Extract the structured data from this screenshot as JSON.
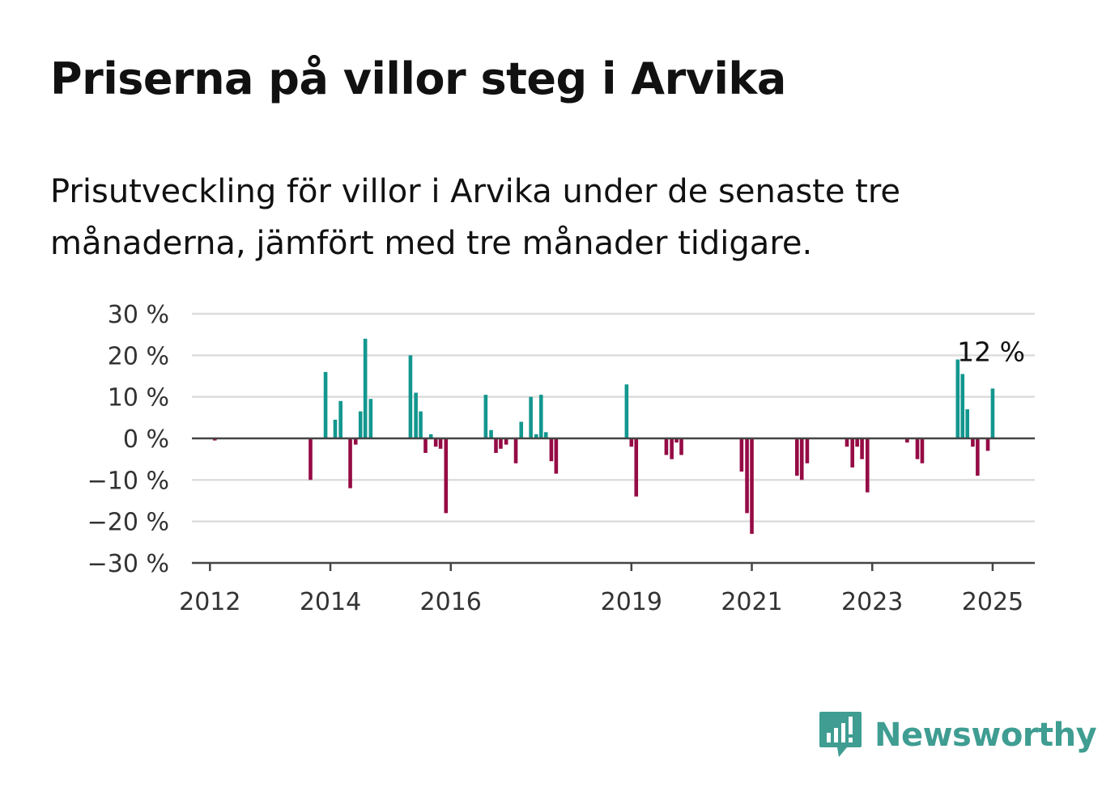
{
  "title": "Priserna på villor steg i Arvika",
  "subtitle": "Prisutveckling för villor i Arvika under de senaste tre månaderna, jämfört med tre månader tidigare.",
  "logo_text": "Newsworthy",
  "colors": {
    "positive": "#12978f",
    "negative": "#950b45",
    "grid": "#dddddd",
    "axis": "#444444",
    "brand": "#3f9d92"
  },
  "chart_data": {
    "type": "bar",
    "title": "Priserna på villor steg i Arvika",
    "subtitle": "Prisutveckling för villor i Arvika under de senaste tre månaderna, jämfört med tre månader tidigare.",
    "xlabel": "",
    "ylabel": "",
    "x_unit": "year",
    "xlim": [
      2011.7,
      2025.7
    ],
    "ylim": [
      -30,
      30
    ],
    "y_ticks": [
      30,
      20,
      10,
      0,
      -10,
      -20,
      -30
    ],
    "y_tick_labels": [
      "30 %",
      "20 %",
      "10 %",
      "0 %",
      "−10 %",
      "−20 %",
      "−30 %"
    ],
    "x_ticks": [
      2012,
      2014,
      2016,
      2019,
      2021,
      2023,
      2025
    ],
    "x_tick_labels": [
      "2012",
      "2014",
      "2016",
      "2019",
      "2021",
      "2023",
      "2025"
    ],
    "grid": true,
    "legend": "none",
    "x": [
      2012.08,
      2013.67,
      2013.92,
      2014.08,
      2014.17,
      2014.33,
      2014.42,
      2014.5,
      2014.58,
      2014.67,
      2015.33,
      2015.42,
      2015.5,
      2015.58,
      2015.67,
      2015.75,
      2015.83,
      2015.92,
      2016.58,
      2016.67,
      2016.75,
      2016.83,
      2016.92,
      2017.08,
      2017.17,
      2017.33,
      2017.42,
      2017.5,
      2017.58,
      2017.67,
      2017.75,
      2018.92,
      2019.0,
      2019.08,
      2019.58,
      2019.67,
      2019.75,
      2019.83,
      2020.83,
      2020.92,
      2021.0,
      2021.75,
      2021.83,
      2021.92,
      2022.58,
      2022.67,
      2022.75,
      2022.83,
      2022.92,
      2023.58,
      2023.75,
      2023.83,
      2024.42,
      2024.5,
      2024.58,
      2024.67,
      2024.75,
      2024.92,
      2025.0
    ],
    "values": [
      -0.5,
      -10,
      16,
      4.5,
      9,
      -12,
      -1.5,
      6.5,
      24,
      9.5,
      20,
      11,
      6.5,
      -3.5,
      1,
      -2,
      -2.5,
      -18,
      10.5,
      2,
      -3.5,
      -2.5,
      -1.5,
      -6,
      4,
      10,
      1,
      10.5,
      1.5,
      -5.5,
      -8.5,
      13,
      -2,
      -14,
      -4,
      -5,
      -1,
      -4,
      -8,
      -18,
      -23,
      -9,
      -10,
      -6,
      -2,
      -7,
      -2,
      -5,
      -13,
      -1,
      -5,
      -6,
      19,
      15.5,
      7,
      -2,
      -9,
      -3,
      12
    ],
    "labels": [
      {
        "x": 2025.0,
        "text": "12 %"
      }
    ]
  }
}
